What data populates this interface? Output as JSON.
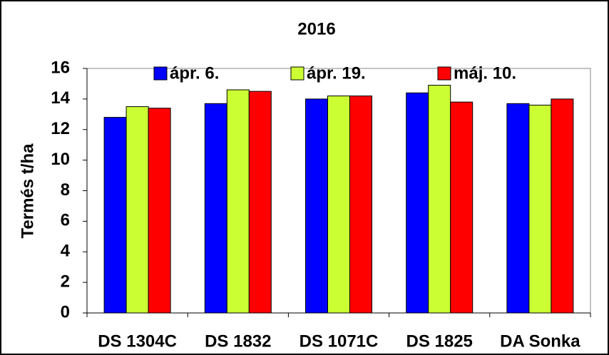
{
  "chart_data": {
    "type": "bar",
    "title": "2016",
    "y_label": "Termés t/ha",
    "categories": [
      "DS 1304C",
      "DS 1832",
      "DS 1071C",
      "DS 1825",
      "DA Sonka"
    ],
    "series": [
      {
        "name": "ápr. 6.",
        "color": "#0000ff",
        "values": [
          12.8,
          13.7,
          14.0,
          14.4,
          13.7
        ]
      },
      {
        "name": "ápr. 19.",
        "color": "#ccff33",
        "values": [
          13.5,
          14.6,
          14.2,
          14.9,
          13.6
        ]
      },
      {
        "name": "máj. 10.",
        "color": "#ff0000",
        "values": [
          13.4,
          14.5,
          14.2,
          13.8,
          14.0
        ]
      }
    ],
    "ylim": [
      0,
      16
    ],
    "yticks": [
      0,
      2,
      4,
      6,
      8,
      10,
      12,
      14,
      16
    ],
    "grid": false,
    "legend": "top"
  }
}
